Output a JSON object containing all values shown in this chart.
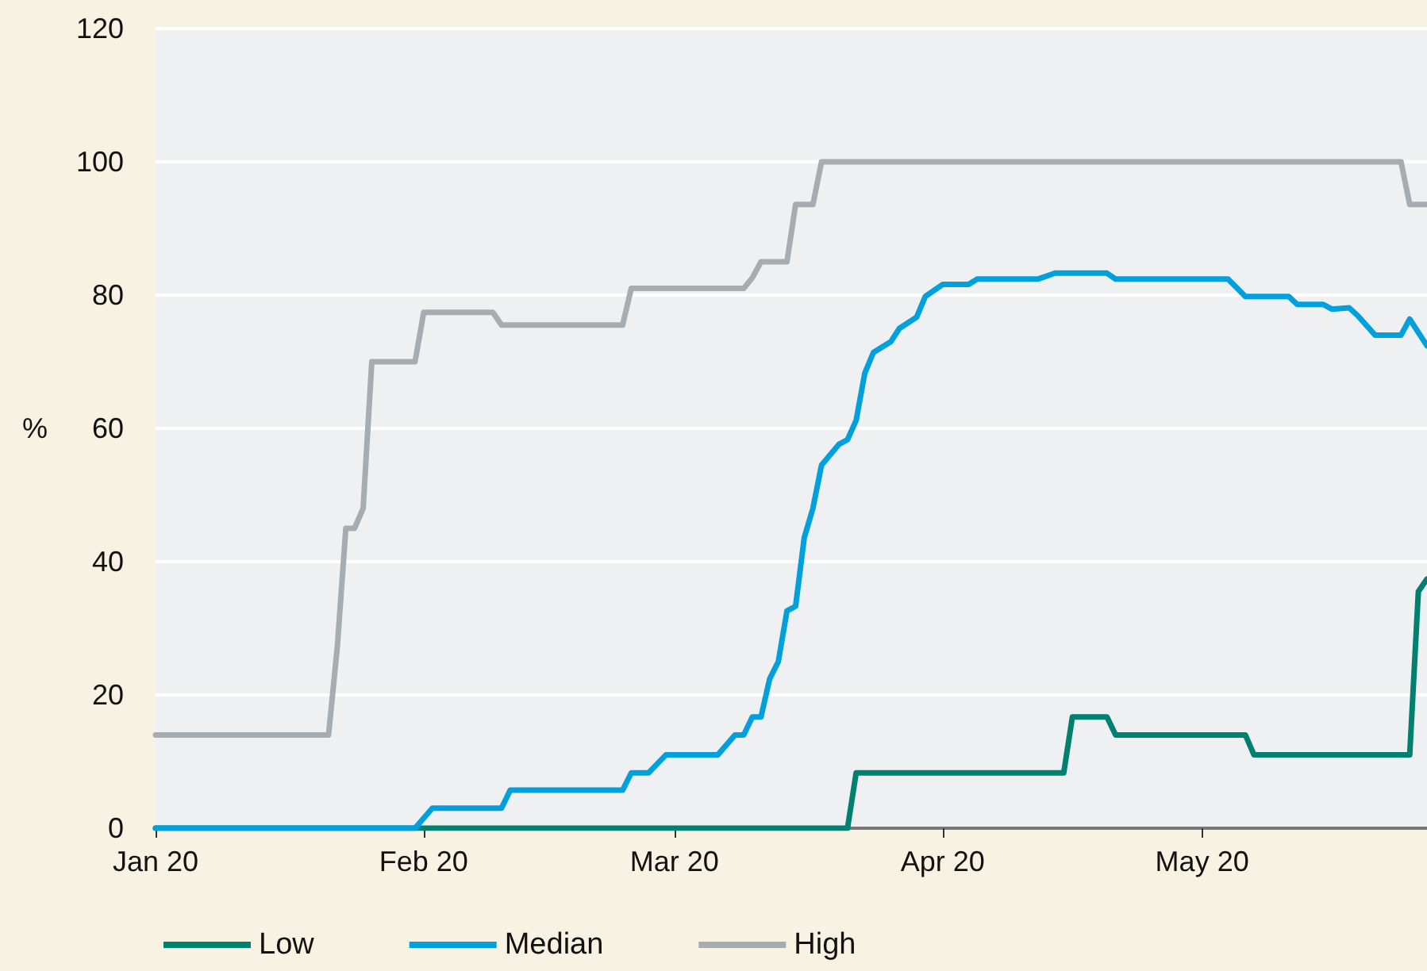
{
  "chart_data": {
    "type": "line",
    "ylabel": "%",
    "xlim": [
      "2020-01-01",
      "2020-05-27"
    ],
    "xticks": [
      {
        "value": "2020-01-01",
        "label": "Jan 20"
      },
      {
        "value": "2020-02-01",
        "label": "Feb 20"
      },
      {
        "value": "2020-03-01",
        "label": "Mar 20"
      },
      {
        "value": "2020-04-01",
        "label": "Apr 20"
      },
      {
        "value": "2020-05-01",
        "label": "May 20"
      }
    ],
    "ylim": [
      0,
      120
    ],
    "yticks": [
      0,
      20,
      40,
      60,
      80,
      100,
      120
    ],
    "grid": "y",
    "legend": "bottom left",
    "marker": "none",
    "line_style": "solid",
    "series": [
      {
        "name": "Low",
        "color": "#00806e",
        "x": [
          "2020-01-01",
          "2020-03-21",
          "2020-03-22",
          "2020-04-15",
          "2020-04-16",
          "2020-04-20",
          "2020-04-21",
          "2020-05-06",
          "2020-05-07",
          "2020-05-25",
          "2020-05-26",
          "2020-05-27"
        ],
        "values": [
          0,
          0,
          8.3,
          8.3,
          16.7,
          16.7,
          14,
          14,
          11,
          11,
          35.5,
          37.4
        ]
      },
      {
        "name": "Median",
        "color": "#00a0dc",
        "x": [
          "2020-01-01",
          "2020-01-31",
          "2020-02-02",
          "2020-02-10",
          "2020-02-11",
          "2020-02-24",
          "2020-02-25",
          "2020-02-27",
          "2020-02-29",
          "2020-03-06",
          "2020-03-08",
          "2020-03-09",
          "2020-03-10",
          "2020-03-11",
          "2020-03-12",
          "2020-03-13",
          "2020-03-14",
          "2020-03-15",
          "2020-03-16",
          "2020-03-17",
          "2020-03-18",
          "2020-03-20",
          "2020-03-21",
          "2020-03-22",
          "2020-03-23",
          "2020-03-24",
          "2020-03-26",
          "2020-03-27",
          "2020-03-29",
          "2020-03-30",
          "2020-04-01",
          "2020-04-04",
          "2020-04-05",
          "2020-04-12",
          "2020-04-14",
          "2020-04-20",
          "2020-04-21",
          "2020-05-04",
          "2020-05-06",
          "2020-05-11",
          "2020-05-12",
          "2020-05-15",
          "2020-05-16",
          "2020-05-18",
          "2020-05-19",
          "2020-05-21",
          "2020-05-24",
          "2020-05-25",
          "2020-05-27"
        ],
        "values": [
          0,
          0,
          3,
          3,
          5.7,
          5.7,
          8.3,
          8.3,
          11,
          11,
          14,
          14,
          16.7,
          16.7,
          22.4,
          25,
          32.6,
          33.3,
          43.6,
          48,
          54.5,
          57.6,
          58.3,
          61.2,
          68.3,
          71.4,
          73,
          75,
          76.7,
          79.8,
          81.6,
          81.6,
          82.4,
          82.4,
          83.3,
          83.3,
          82.4,
          82.4,
          79.8,
          79.8,
          78.6,
          78.6,
          77.9,
          78.1,
          76.9,
          74,
          74,
          76.4,
          72.4
        ]
      },
      {
        "name": "High",
        "color": "#a6acb0",
        "x": [
          "2020-01-01",
          "2020-01-21",
          "2020-01-22",
          "2020-01-23",
          "2020-01-24",
          "2020-01-25",
          "2020-01-26",
          "2020-01-31",
          "2020-02-01",
          "2020-02-09",
          "2020-02-10",
          "2020-02-24",
          "2020-02-25",
          "2020-03-09",
          "2020-03-10",
          "2020-03-11",
          "2020-03-14",
          "2020-03-15",
          "2020-03-17",
          "2020-03-18",
          "2020-05-24",
          "2020-05-25",
          "2020-05-27"
        ],
        "values": [
          14,
          14,
          27,
          45,
          45,
          48,
          70,
          70,
          77.4,
          77.4,
          75.5,
          75.5,
          81,
          81,
          82.6,
          85,
          85,
          93.6,
          93.6,
          100,
          100,
          93.6,
          93.6
        ]
      }
    ]
  }
}
